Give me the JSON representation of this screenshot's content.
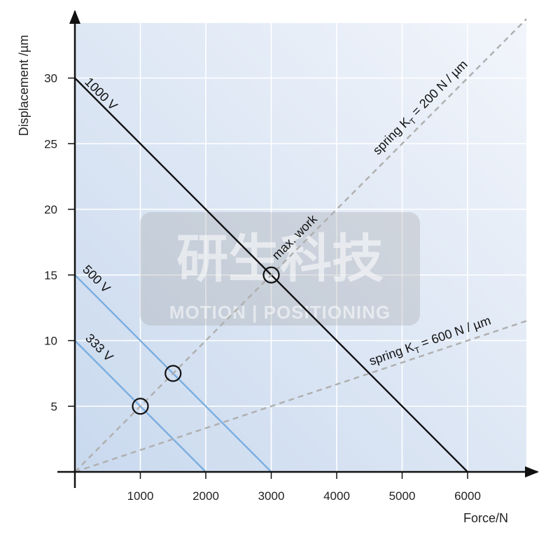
{
  "chart_data": {
    "type": "line",
    "title": "",
    "xlabel": "Force/N",
    "ylabel": "Displacement /µm",
    "xlim": [
      0,
      6900
    ],
    "ylim": [
      0,
      34
    ],
    "xticks": [
      1000,
      2000,
      3000,
      4000,
      5000,
      6000
    ],
    "yticks": [
      5,
      10,
      15,
      20,
      25,
      30
    ],
    "grid": true,
    "series": [
      {
        "name": "1000 V",
        "x": [
          0,
          6000
        ],
        "y": [
          30,
          0
        ],
        "style": "solid",
        "color": "#111111"
      },
      {
        "name": "500 V",
        "x": [
          0,
          3000
        ],
        "y": [
          15,
          0
        ],
        "style": "solid",
        "color": "#7aaee0"
      },
      {
        "name": "333 V",
        "x": [
          0,
          2000
        ],
        "y": [
          10,
          0
        ],
        "style": "solid",
        "color": "#7aaee0"
      },
      {
        "name": "spring K_T = 200 N / µm",
        "x": [
          0,
          6900
        ],
        "y": [
          0,
          34.5
        ],
        "style": "dashed",
        "color": "#b0b0b0"
      },
      {
        "name": "spring K_T = 600 N / µm",
        "x": [
          0,
          6900
        ],
        "y": [
          0,
          11.5
        ],
        "style": "dashed",
        "color": "#b0b0b0"
      }
    ],
    "markers": [
      {
        "x": 3000,
        "y": 15
      },
      {
        "x": 1500,
        "y": 7.5
      },
      {
        "x": 1000,
        "y": 5
      }
    ],
    "annotations": [
      {
        "text": "max. work",
        "x": 3000,
        "y": 15
      }
    ]
  },
  "labels": {
    "line_1000": "1000 V",
    "line_500": "500 V",
    "line_333": "333 V",
    "spring_200_prefix": "spring K",
    "spring_200_sub": "T",
    "spring_200_suffix": " = 200 N / µm",
    "spring_600_prefix": "spring K",
    "spring_600_sub": "T",
    "spring_600_suffix": " = 600 N / µm",
    "max_work": "max. work"
  },
  "watermark": {
    "main": "研生科技",
    "sub": "MOTION | POSITIONING"
  },
  "colors": {
    "plot_bg_start": "#c9d9ee",
    "plot_bg_end": "#f2f5fb",
    "ylabel_color": "#1e4f34"
  }
}
